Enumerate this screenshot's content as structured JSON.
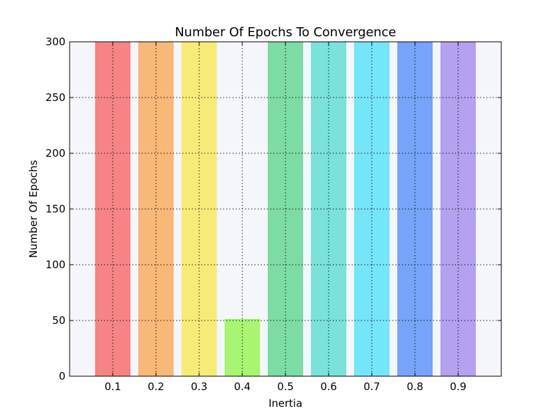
{
  "chart_data": {
    "type": "bar",
    "title": "Number Of Epochs To Convergence",
    "xlabel": "Inertia",
    "ylabel": "Number Of Epochs",
    "categories": [
      "0.1",
      "0.2",
      "0.3",
      "0.4",
      "0.5",
      "0.6",
      "0.7",
      "0.8",
      "0.9"
    ],
    "values": [
      300,
      300,
      300,
      51,
      300,
      300,
      300,
      300,
      300
    ],
    "colors": [
      "#f86868",
      "#f7a957",
      "#f7e858",
      "#94f54e",
      "#5fd68e",
      "#5bdcd3",
      "#55e1f9",
      "#5890f7",
      "#a48cec"
    ],
    "bar_opacity": 0.8,
    "xlim": [
      0,
      1
    ],
    "ylim": [
      0,
      300
    ],
    "yticks": [
      0,
      50,
      100,
      150,
      200,
      250,
      300
    ],
    "grid": true,
    "background": "#f4f6fb",
    "legend": "none"
  }
}
